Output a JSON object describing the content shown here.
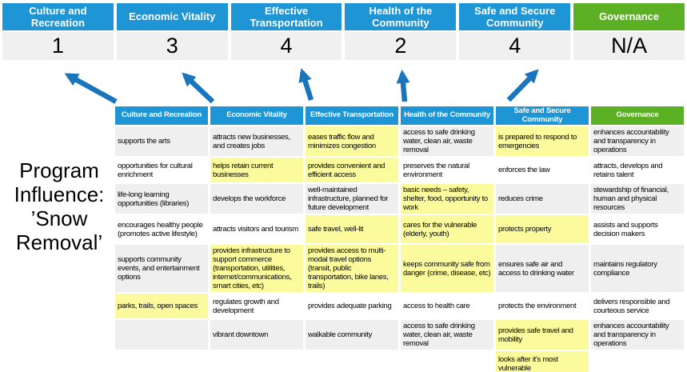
{
  "title": {
    "text": "Program\nInfluence:\n’Snow\nRemoval’"
  },
  "colors": {
    "header_blue": "#1E95D4",
    "header_green": "#5CB024",
    "score_bg": "#F0F0F0",
    "row_alt": "#EFEFEF",
    "highlight": "#FBFB9D",
    "arrow": "#1B75BC",
    "header_text": "#FFFFFF"
  },
  "summary": {
    "columns": [
      {
        "label": "Culture and Recreation",
        "score": "1",
        "accent": "blue"
      },
      {
        "label": "Economic Vitality",
        "score": "3",
        "accent": "blue"
      },
      {
        "label": "Effective Transportation",
        "score": "4",
        "accent": "blue"
      },
      {
        "label": "Health of the Community",
        "score": "2",
        "accent": "blue"
      },
      {
        "label": "Safe and Secure Community",
        "score": "4",
        "accent": "blue"
      },
      {
        "label": "Governance",
        "score": "N/A",
        "accent": "green"
      }
    ]
  },
  "matrix": {
    "headers": [
      "Culture and Recreation",
      "Economic Vitality",
      "Effective Transportation",
      "Health of the Community",
      "Safe and Secure Community",
      "Governance"
    ],
    "rows": [
      [
        {
          "t": "supports the arts",
          "h": false
        },
        {
          "t": "attracts new businesses, and creates jobs",
          "h": false
        },
        {
          "t": "eases traffic flow and minimizes congestion",
          "h": true
        },
        {
          "t": "access to safe drinking water, clean air, waste removal",
          "h": false
        },
        {
          "t": "is prepared to respond to emergencies",
          "h": true
        },
        {
          "t": "enhances accountability and transparency in operations",
          "h": false
        }
      ],
      [
        {
          "t": "opportunities for cultural enrichment",
          "h": false
        },
        {
          "t": "helps retain current businesses",
          "h": true
        },
        {
          "t": "provides convenient and efficient access",
          "h": true
        },
        {
          "t": "preserves the natural environment",
          "h": false
        },
        {
          "t": "enforces the law",
          "h": false
        },
        {
          "t": "attracts, develops and retains talent",
          "h": false
        }
      ],
      [
        {
          "t": "life-long learning opportunities (libraries)",
          "h": false
        },
        {
          "t": "develops the workforce",
          "h": false
        },
        {
          "t": "well-maintained infrastructure, planned for future development",
          "h": false
        },
        {
          "t": "basic needs – safety, shelter, food, opportunity to work",
          "h": true
        },
        {
          "t": "reduces crime",
          "h": false
        },
        {
          "t": "stewardship of financial, human and physical resources",
          "h": false
        }
      ],
      [
        {
          "t": "encourages healthy people (promotes active lifestyle)",
          "h": false
        },
        {
          "t": "attracts visitors and tourism",
          "h": false
        },
        {
          "t": "safe travel, well-lit",
          "h": true
        },
        {
          "t": "cares for the vulnerable (elderly, youth)",
          "h": true
        },
        {
          "t": "protects property",
          "h": true
        },
        {
          "t": "assists and supports decision makers",
          "h": false
        }
      ],
      [
        {
          "t": "supports community events, and entertainment options",
          "h": false
        },
        {
          "t": "provides infrastructure to support commerce (transportation, utilities, internet/communications, smart cities, etc)",
          "h": true
        },
        {
          "t": "provides access to multi-modal travel options (transit, public transportation, bike lanes, trails)",
          "h": true
        },
        {
          "t": "keeps community safe from danger (crime, disease, etc)",
          "h": true
        },
        {
          "t": "ensures safe air and access to drinking water",
          "h": false
        },
        {
          "t": "maintains regulatory compliance",
          "h": false
        }
      ],
      [
        {
          "t": "parks, trails, open spaces",
          "h": true
        },
        {
          "t": "regulates growth and development",
          "h": false
        },
        {
          "t": "provides adequate parking",
          "h": false
        },
        {
          "t": "access to health care",
          "h": false
        },
        {
          "t": "protects the environment",
          "h": false
        },
        {
          "t": "delivers responsible and courteous service",
          "h": false
        }
      ],
      [
        {
          "t": "",
          "h": false
        },
        {
          "t": "vibrant downtown",
          "h": false
        },
        {
          "t": "walkable community",
          "h": false
        },
        {
          "t": "access to safe drinking water, clean air, waste removal",
          "h": false
        },
        {
          "t": "provides safe travel and mobility",
          "h": true
        },
        {
          "t": "enhances accountability and transparency in operations",
          "h": false
        }
      ],
      [
        {
          "t": "",
          "h": false
        },
        {
          "t": "",
          "h": false
        },
        {
          "t": "",
          "h": false
        },
        {
          "t": "",
          "h": false
        },
        {
          "t": "looks after it's most vulnerable",
          "h": true
        },
        {
          "t": "",
          "h": false
        }
      ]
    ]
  }
}
